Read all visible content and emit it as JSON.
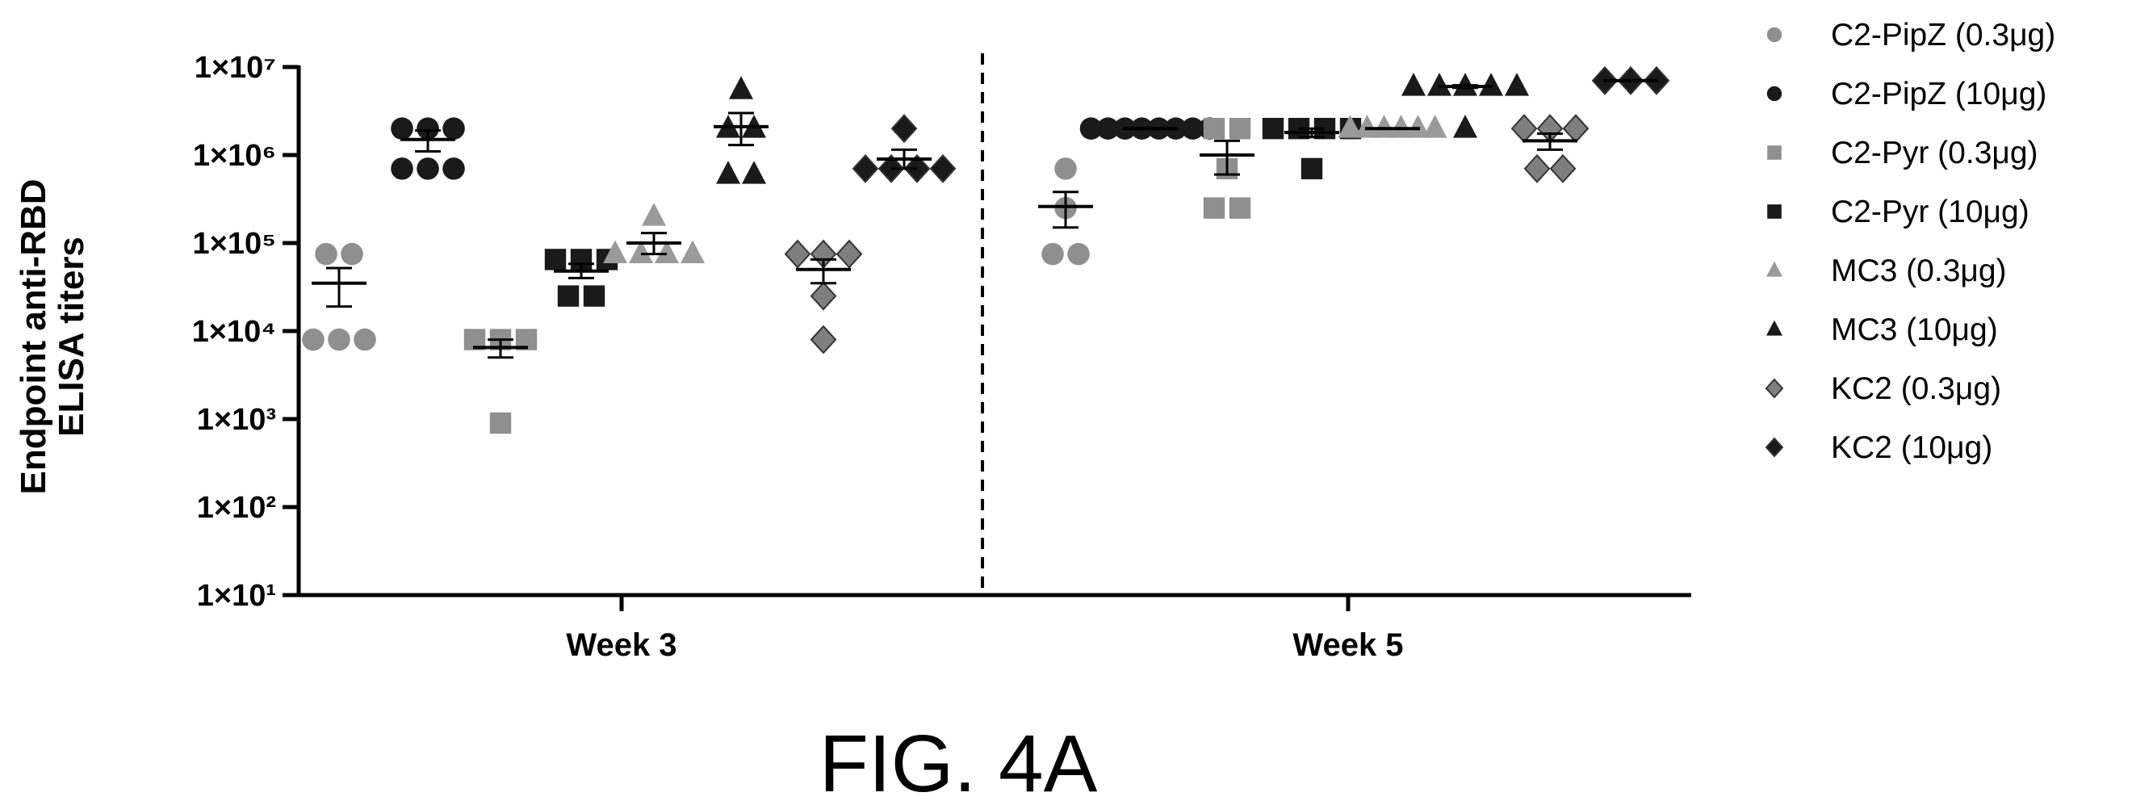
{
  "figure_label": "FIG. 4A",
  "chart_data": {
    "type": "scatter",
    "ylabel_line1": "Endpoint anti-RBD",
    "ylabel_line2": "ELISA titers",
    "yscale": "log",
    "ylim": [
      10,
      10000000
    ],
    "yticks": [
      {
        "value": 10,
        "label": "1×10¹"
      },
      {
        "value": 100,
        "label": "1×10²"
      },
      {
        "value": 1000,
        "label": "1×10³"
      },
      {
        "value": 10000,
        "label": "1×10⁴"
      },
      {
        "value": 100000,
        "label": "1×10⁵"
      },
      {
        "value": 1000000,
        "label": "1×10⁶"
      },
      {
        "value": 10000000,
        "label": "1×10⁷"
      }
    ],
    "categories": [
      "Week 3",
      "Week 5"
    ],
    "divider": "dashed line between Week 3 and Week 5",
    "legend_position": "right",
    "series": [
      {
        "name": "C2-PipZ  (0.3μg)",
        "marker": "circle",
        "color": "#8f8f8f",
        "week3": {
          "points": [
            8000,
            8000,
            8000,
            75000,
            75000
          ],
          "mean": 35000,
          "sem": [
            19000,
            52000
          ]
        },
        "week5": {
          "points": [
            75000,
            75000,
            250000,
            700000
          ],
          "mean": 260000,
          "sem": [
            150000,
            380000
          ]
        }
      },
      {
        "name": "C2-PipZ (10μg)",
        "marker": "circle",
        "color": "#1a1a1a",
        "week3": {
          "points": [
            700000,
            700000,
            700000,
            2000000,
            2000000,
            2000000
          ],
          "mean": 1500000,
          "sem": [
            1100000,
            1900000
          ]
        },
        "week5": {
          "points": [
            2000000,
            2000000,
            2000000,
            2000000,
            2000000,
            2000000,
            2000000,
            2000000
          ],
          "mean": 2000000,
          "sem": [
            2000000,
            2000000
          ]
        }
      },
      {
        "name": "C2-Pyr  (0.3μg)",
        "marker": "square",
        "color": "#8f8f8f",
        "week3": {
          "points": [
            900,
            8000,
            8000,
            8000
          ],
          "mean": 6500,
          "sem": [
            5000,
            8000
          ]
        },
        "week5": {
          "points": [
            250000,
            250000,
            700000,
            2000000,
            2000000
          ],
          "mean": 1000000,
          "sem": [
            600000,
            1450000
          ]
        }
      },
      {
        "name": "C2-Pyr  (10μg)",
        "marker": "square",
        "color": "#1a1a1a",
        "week3": {
          "points": [
            25000,
            25000,
            65000,
            65000,
            65000
          ],
          "mean": 48000,
          "sem": [
            40000,
            58000
          ]
        },
        "week5": {
          "points": [
            700000,
            2000000,
            2000000,
            2000000,
            2000000
          ],
          "mean": 1800000,
          "sem": [
            1600000,
            2000000
          ]
        }
      },
      {
        "name": "MC3  (0.3μg)",
        "marker": "triangle",
        "color": "#9a9a9a",
        "week3": {
          "points": [
            75000,
            75000,
            75000,
            75000,
            200000
          ],
          "mean": 100000,
          "sem": [
            75000,
            130000
          ]
        },
        "week5": {
          "points": [
            2000000,
            2000000,
            2000000,
            2000000,
            2000000,
            2000000
          ],
          "mean": 2000000,
          "sem": [
            2000000,
            2000000
          ]
        }
      },
      {
        "name": "MC3  (10μg)",
        "marker": "triangle",
        "color": "#1a1a1a",
        "week3": {
          "points": [
            600000,
            600000,
            2000000,
            2000000,
            5500000
          ],
          "mean": 2100000,
          "sem": [
            1300000,
            3000000
          ]
        },
        "week5": {
          "points": [
            2000000,
            6000000,
            6000000,
            6000000,
            6000000,
            6000000
          ],
          "mean": 6000000,
          "sem": [
            5800000,
            6200000
          ]
        }
      },
      {
        "name": "KC2  (0.3μg)",
        "marker": "diamond",
        "color": "#7f7f7f",
        "week3": {
          "points": [
            8000,
            25000,
            75000,
            75000,
            75000
          ],
          "mean": 50000,
          "sem": [
            35000,
            65000
          ]
        },
        "week5": {
          "points": [
            700000,
            700000,
            2000000,
            2000000,
            2000000
          ],
          "mean": 1450000,
          "sem": [
            1150000,
            1750000
          ]
        }
      },
      {
        "name": "KC2  (10μg)",
        "marker": "diamond",
        "color": "#1a1a1a",
        "week3": {
          "points": [
            700000,
            700000,
            700000,
            700000,
            2000000
          ],
          "mean": 900000,
          "sem": [
            700000,
            1150000
          ]
        },
        "week5": {
          "points": [
            7000000,
            7000000,
            7000000
          ],
          "mean": 7000000,
          "sem": [
            7000000,
            7000000
          ]
        }
      }
    ]
  }
}
